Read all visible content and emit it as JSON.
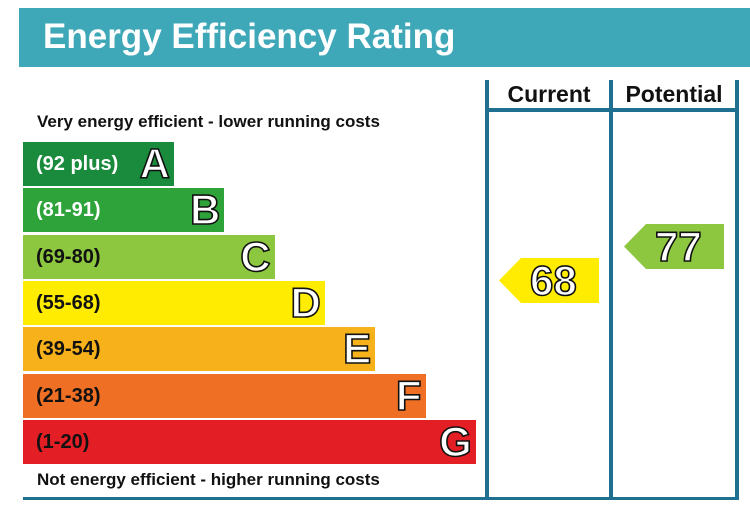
{
  "header": {
    "title": "Energy Efficiency Rating"
  },
  "columns": {
    "current_label": "Current",
    "potential_label": "Potential"
  },
  "captions": {
    "top": "Very energy efficient - lower running costs",
    "bottom": "Not energy efficient - higher running costs"
  },
  "chart_data": {
    "type": "bar",
    "title": "Energy Efficiency Rating",
    "categories": [
      "A",
      "B",
      "C",
      "D",
      "E",
      "F",
      "G"
    ],
    "ranges": [
      "(92 plus)",
      "(81-91)",
      "(69-80)",
      "(55-68)",
      "(39-54)",
      "(21-38)",
      "(1-20)"
    ],
    "colors": [
      "#1a8a3c",
      "#2ea33a",
      "#8dc63f",
      "#ffec00",
      "#f7b11a",
      "#ef6f25",
      "#e31e24"
    ],
    "range_text_colors": [
      "#ffffff",
      "#ffffff",
      "#111111",
      "#111111",
      "#111111",
      "#111111",
      "#111111"
    ],
    "current": {
      "value": 68,
      "band": "D",
      "color": "#ffec00"
    },
    "potential": {
      "value": 77,
      "band": "C",
      "color": "#8dc63f"
    }
  }
}
